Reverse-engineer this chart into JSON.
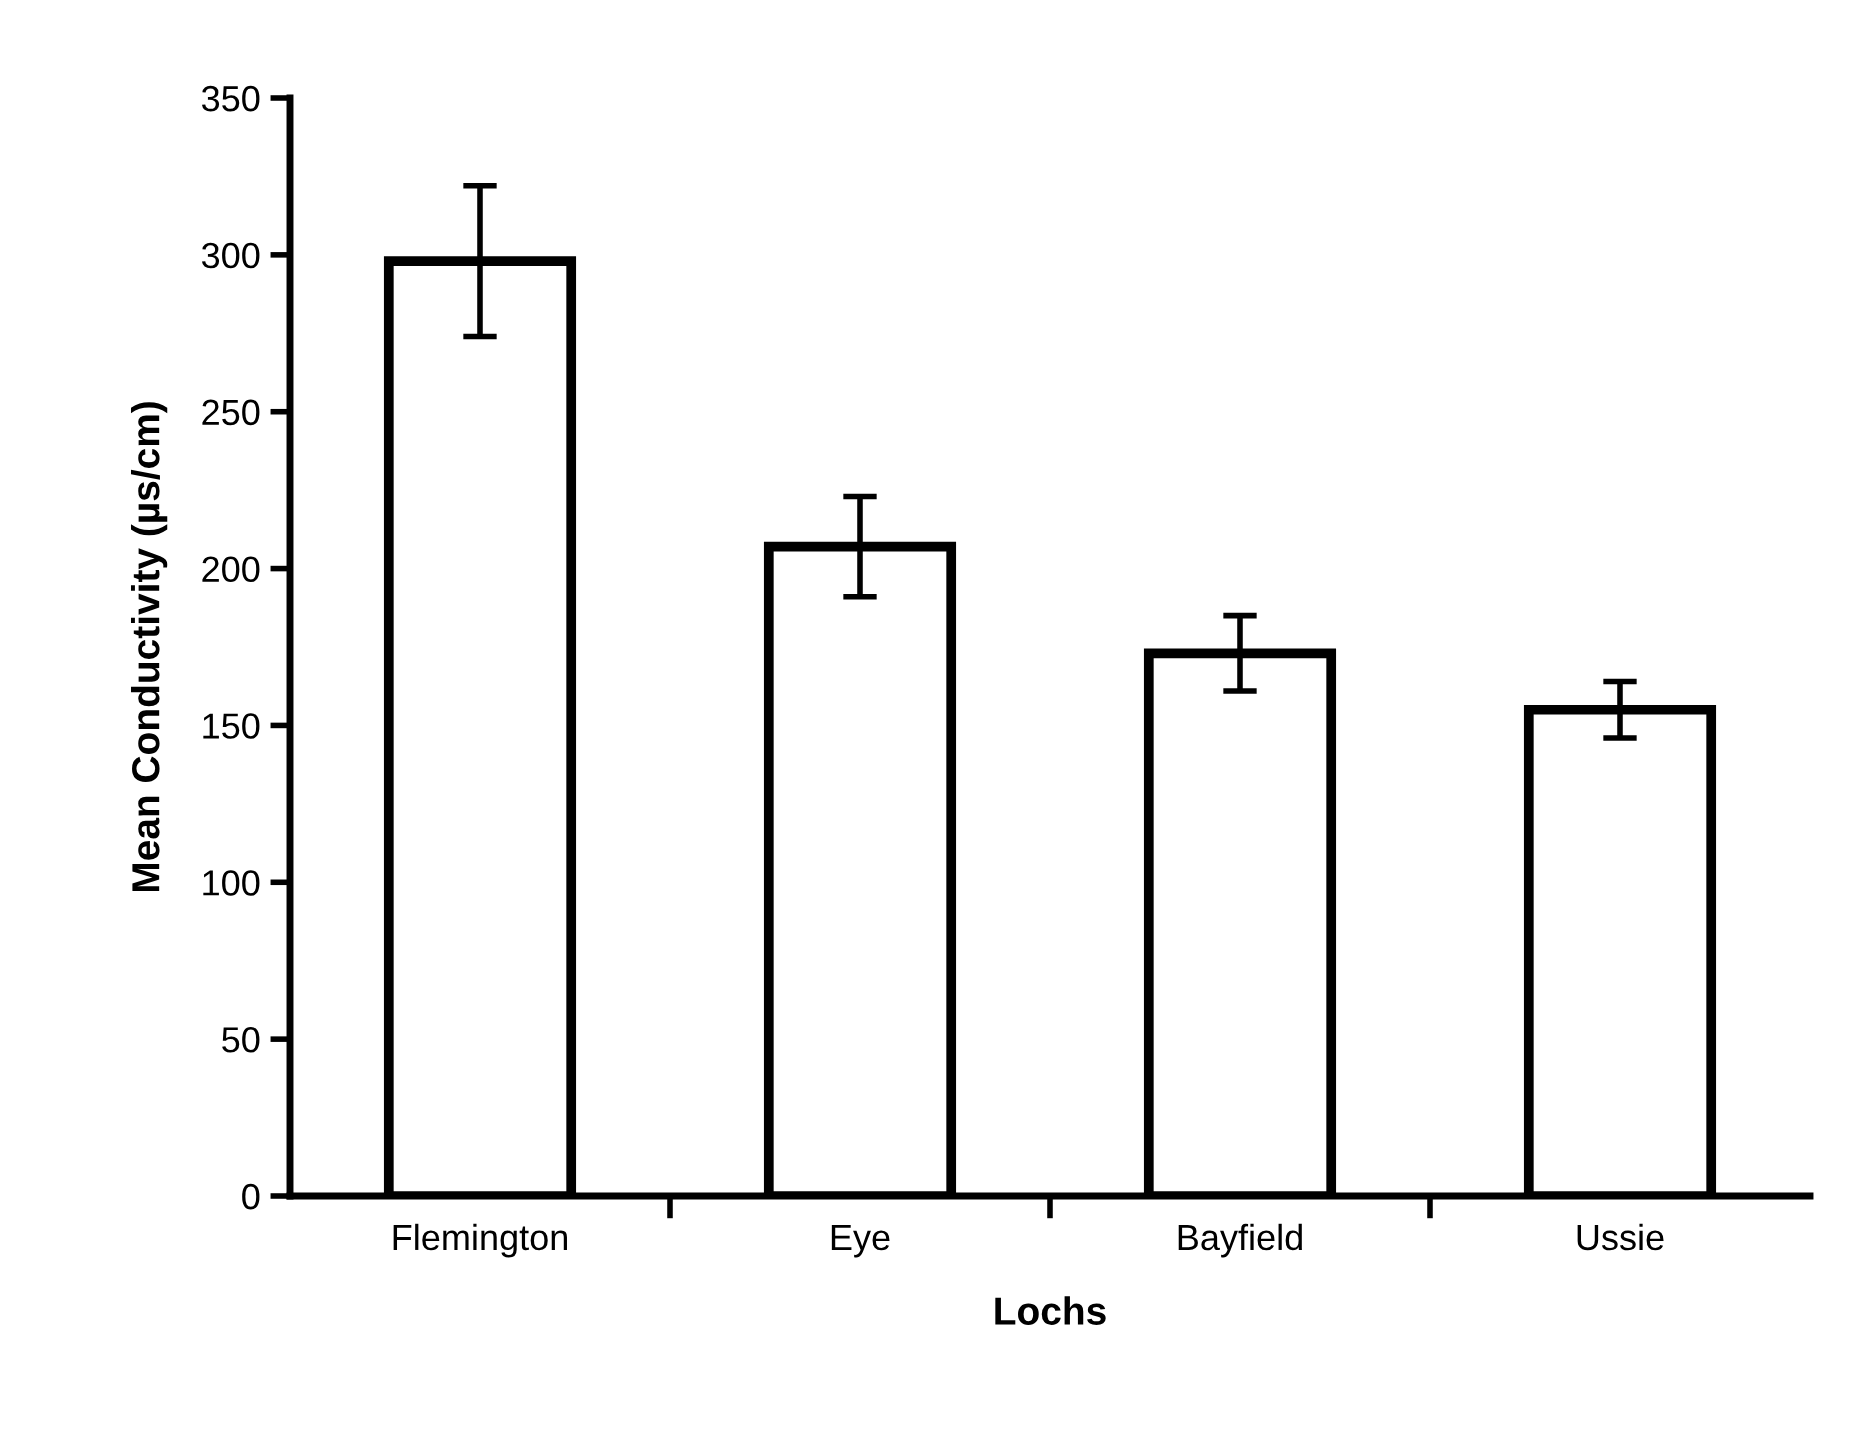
{
  "chart_data": {
    "type": "bar",
    "xlabel": "Lochs",
    "ylabel": "Mean Conductivity (µs/cm)",
    "categories": [
      "Flemington",
      "Eye",
      "Bayfield",
      "Ussie"
    ],
    "values": [
      298,
      207,
      173,
      155
    ],
    "errors": [
      24,
      16,
      12,
      9
    ],
    "color": "#ffffff",
    "ylim": [
      0,
      350
    ],
    "yticks": [
      0,
      50,
      100,
      150,
      200,
      250,
      300,
      350
    ],
    "grid": false,
    "legend": false
  }
}
